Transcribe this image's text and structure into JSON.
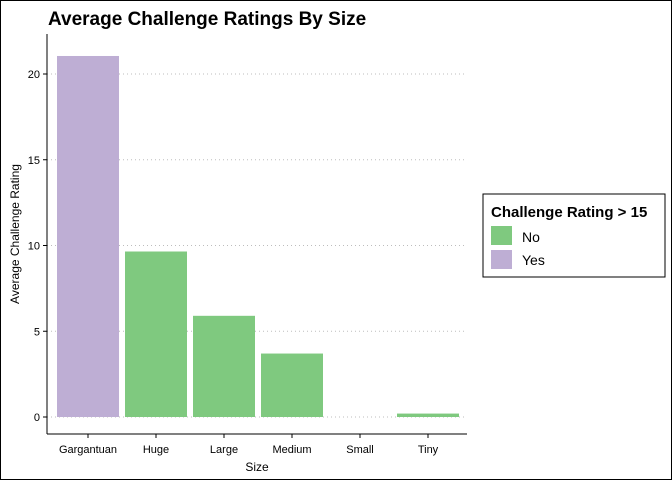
{
  "chart_data": {
    "type": "bar",
    "title": "Average Challenge Ratings By Size",
    "xlabel": "Size",
    "ylabel": "Average Challenge Rating",
    "categories": [
      "Gargantuan",
      "Huge",
      "Large",
      "Medium",
      "Small",
      "Tiny"
    ],
    "values": [
      21.05,
      9.65,
      5.9,
      3.7,
      0,
      0.2
    ],
    "groups": [
      "Yes",
      "No",
      "No",
      "No",
      "No",
      "No"
    ],
    "ylim": [
      0,
      22.1
    ],
    "yticks": [
      0,
      5,
      10,
      15,
      20
    ],
    "grid": "horizontal dotted",
    "legend": {
      "title": "Challenge Rating > 15",
      "position": "right",
      "items": [
        {
          "label": "No",
          "color": "#7fc97f"
        },
        {
          "label": "Yes",
          "color": "#beaed4"
        }
      ]
    }
  }
}
